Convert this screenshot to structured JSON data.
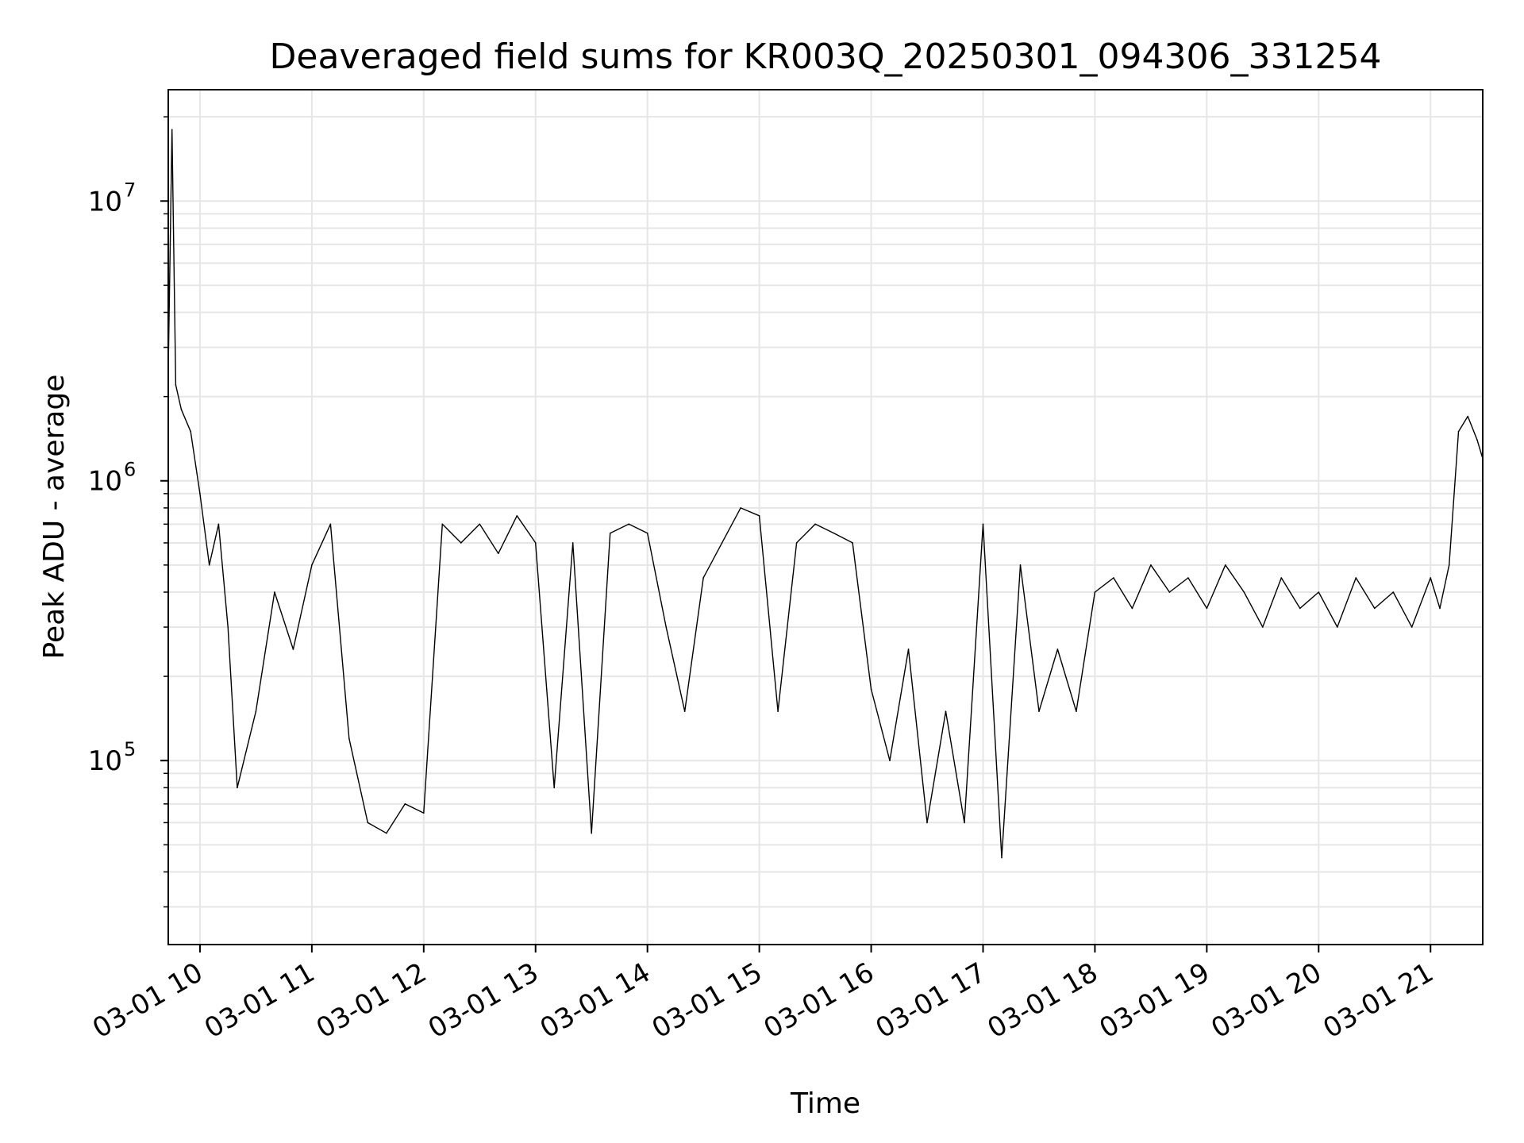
{
  "chart_data": {
    "type": "line",
    "title": "Deaveraged field sums for KR003Q_20250301_094306_331254",
    "xlabel": "Time",
    "ylabel": "Peak ADU - average",
    "yscale": "log",
    "grid": true,
    "line_color": "#000000",
    "grid_color": "#e6e6e6",
    "xlim": [
      "2025-03-01 09:43",
      "2025-03-01 21:28"
    ],
    "ylim": [
      22000,
      25000000
    ],
    "x_ticks": [
      {
        "t": "2025-03-01 10:00",
        "label": "03-01 10"
      },
      {
        "t": "2025-03-01 11:00",
        "label": "03-01 11"
      },
      {
        "t": "2025-03-01 12:00",
        "label": "03-01 12"
      },
      {
        "t": "2025-03-01 13:00",
        "label": "03-01 13"
      },
      {
        "t": "2025-03-01 14:00",
        "label": "03-01 14"
      },
      {
        "t": "2025-03-01 15:00",
        "label": "03-01 15"
      },
      {
        "t": "2025-03-01 16:00",
        "label": "03-01 16"
      },
      {
        "t": "2025-03-01 17:00",
        "label": "03-01 17"
      },
      {
        "t": "2025-03-01 18:00",
        "label": "03-01 18"
      },
      {
        "t": "2025-03-01 19:00",
        "label": "03-01 19"
      },
      {
        "t": "2025-03-01 20:00",
        "label": "03-01 20"
      },
      {
        "t": "2025-03-01 21:00",
        "label": "03-01 21"
      }
    ],
    "y_ticks": [
      {
        "value": 100000,
        "base": "10",
        "exp": "5"
      },
      {
        "value": 1000000,
        "base": "10",
        "exp": "6"
      },
      {
        "value": 10000000,
        "base": "10",
        "exp": "7"
      }
    ],
    "series": [
      {
        "x": [
          "2025-03-01 09:43",
          "2025-03-01 09:45",
          "2025-03-01 09:47",
          "2025-03-01 09:50",
          "2025-03-01 09:55",
          "2025-03-01 10:00",
          "2025-03-01 10:05",
          "2025-03-01 10:10",
          "2025-03-01 10:15",
          "2025-03-01 10:20",
          "2025-03-01 10:30",
          "2025-03-01 10:40",
          "2025-03-01 10:50",
          "2025-03-01 11:00",
          "2025-03-01 11:10",
          "2025-03-01 11:20",
          "2025-03-01 11:30",
          "2025-03-01 11:40",
          "2025-03-01 11:50",
          "2025-03-01 12:00",
          "2025-03-01 12:10",
          "2025-03-01 12:20",
          "2025-03-01 12:30",
          "2025-03-01 12:40",
          "2025-03-01 12:50",
          "2025-03-01 13:00",
          "2025-03-01 13:10",
          "2025-03-01 13:20",
          "2025-03-01 13:30",
          "2025-03-01 13:40",
          "2025-03-01 13:50",
          "2025-03-01 14:00",
          "2025-03-01 14:10",
          "2025-03-01 14:20",
          "2025-03-01 14:30",
          "2025-03-01 14:40",
          "2025-03-01 14:50",
          "2025-03-01 15:00",
          "2025-03-01 15:10",
          "2025-03-01 15:20",
          "2025-03-01 15:30",
          "2025-03-01 15:40",
          "2025-03-01 15:50",
          "2025-03-01 16:00",
          "2025-03-01 16:10",
          "2025-03-01 16:20",
          "2025-03-01 16:30",
          "2025-03-01 16:40",
          "2025-03-01 16:50",
          "2025-03-01 17:00",
          "2025-03-01 17:10",
          "2025-03-01 17:20",
          "2025-03-01 17:30",
          "2025-03-01 17:40",
          "2025-03-01 17:50",
          "2025-03-01 18:00",
          "2025-03-01 18:10",
          "2025-03-01 18:20",
          "2025-03-01 18:30",
          "2025-03-01 18:40",
          "2025-03-01 18:50",
          "2025-03-01 19:00",
          "2025-03-01 19:10",
          "2025-03-01 19:20",
          "2025-03-01 19:30",
          "2025-03-01 19:40",
          "2025-03-01 19:50",
          "2025-03-01 20:00",
          "2025-03-01 20:10",
          "2025-03-01 20:20",
          "2025-03-01 20:30",
          "2025-03-01 20:40",
          "2025-03-01 20:50",
          "2025-03-01 21:00",
          "2025-03-01 21:05",
          "2025-03-01 21:10",
          "2025-03-01 21:15",
          "2025-03-01 21:20",
          "2025-03-01 21:25",
          "2025-03-01 21:28"
        ],
        "y": [
          2500000,
          18000000,
          2200000,
          1800000,
          1500000,
          900000,
          500000,
          700000,
          300000,
          80000,
          150000,
          400000,
          250000,
          500000,
          700000,
          120000,
          60000,
          55000,
          70000,
          65000,
          700000,
          600000,
          700000,
          550000,
          750000,
          600000,
          80000,
          600000,
          55000,
          650000,
          700000,
          650000,
          300000,
          150000,
          450000,
          600000,
          800000,
          750000,
          150000,
          600000,
          700000,
          650000,
          600000,
          180000,
          100000,
          250000,
          60000,
          150000,
          60000,
          700000,
          45000,
          500000,
          150000,
          250000,
          150000,
          400000,
          450000,
          350000,
          500000,
          400000,
          450000,
          350000,
          500000,
          400000,
          300000,
          450000,
          350000,
          400000,
          300000,
          450000,
          350000,
          400000,
          300000,
          450000,
          350000,
          500000,
          1500000,
          1700000,
          1400000,
          1200000
        ]
      }
    ]
  }
}
